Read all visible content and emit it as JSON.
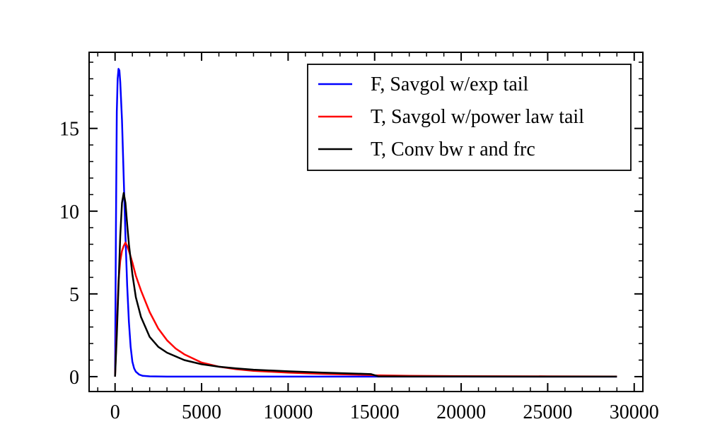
{
  "chart_data": {
    "type": "line",
    "title": "",
    "xlabel": "",
    "ylabel": "",
    "xlim": [
      -1500,
      30500
    ],
    "ylim": [
      -0.9,
      19.6
    ],
    "x_ticks": [
      0,
      5000,
      10000,
      15000,
      20000,
      25000,
      30000
    ],
    "y_ticks": [
      0,
      5,
      10,
      15
    ],
    "grid": false,
    "legend_position": "top-right",
    "series": [
      {
        "name": "F, Savgol w/exp tail",
        "color": "#0000ff",
        "x": [
          0,
          50,
          100,
          150,
          200,
          250,
          300,
          400,
          500,
          600,
          700,
          800,
          900,
          1000,
          1100,
          1200,
          1400,
          1600,
          2000,
          3000,
          5000,
          10000,
          15000,
          20000,
          25000,
          29000
        ],
        "y": [
          0,
          9,
          16,
          18,
          18.6,
          18.5,
          17.8,
          15.5,
          12,
          8.5,
          5.5,
          3.3,
          1.8,
          0.9,
          0.5,
          0.3,
          0.12,
          0.05,
          0.02,
          0,
          0,
          0,
          0,
          0,
          0,
          0
        ]
      },
      {
        "name": "T, Savgol w/power law tail",
        "color": "#ff0000",
        "x": [
          0,
          100,
          200,
          300,
          400,
          500,
          600,
          700,
          800,
          1000,
          1200,
          1500,
          2000,
          2500,
          3000,
          3500,
          4000,
          5000,
          6000,
          7000,
          8000,
          10000,
          12000,
          14000,
          14800,
          15000,
          17000,
          20000,
          25000,
          29000
        ],
        "y": [
          0,
          3,
          5.8,
          7,
          7.6,
          7.9,
          8.1,
          7.9,
          7.6,
          6.9,
          6.1,
          5.2,
          3.9,
          2.9,
          2.2,
          1.7,
          1.35,
          0.85,
          0.6,
          0.45,
          0.35,
          0.24,
          0.17,
          0.12,
          0.1,
          0.08,
          0.05,
          0.03,
          0.02,
          0.01
        ]
      },
      {
        "name": "T, Conv bw r and frc",
        "color": "#000000",
        "x": [
          0,
          100,
          200,
          300,
          400,
          500,
          600,
          700,
          800,
          1000,
          1200,
          1500,
          2000,
          2500,
          3000,
          4000,
          5000,
          6000,
          7000,
          8000,
          10000,
          12000,
          14000,
          14800,
          15200,
          17000,
          20000,
          25000,
          29000
        ],
        "y": [
          0,
          2.5,
          5.5,
          8.5,
          10.5,
          11.1,
          10.5,
          9.2,
          8,
          6.2,
          4.8,
          3.6,
          2.4,
          1.8,
          1.45,
          1.0,
          0.75,
          0.6,
          0.5,
          0.42,
          0.32,
          0.24,
          0.18,
          0.15,
          0.02,
          0.01,
          0.01,
          0,
          0
        ]
      }
    ]
  }
}
